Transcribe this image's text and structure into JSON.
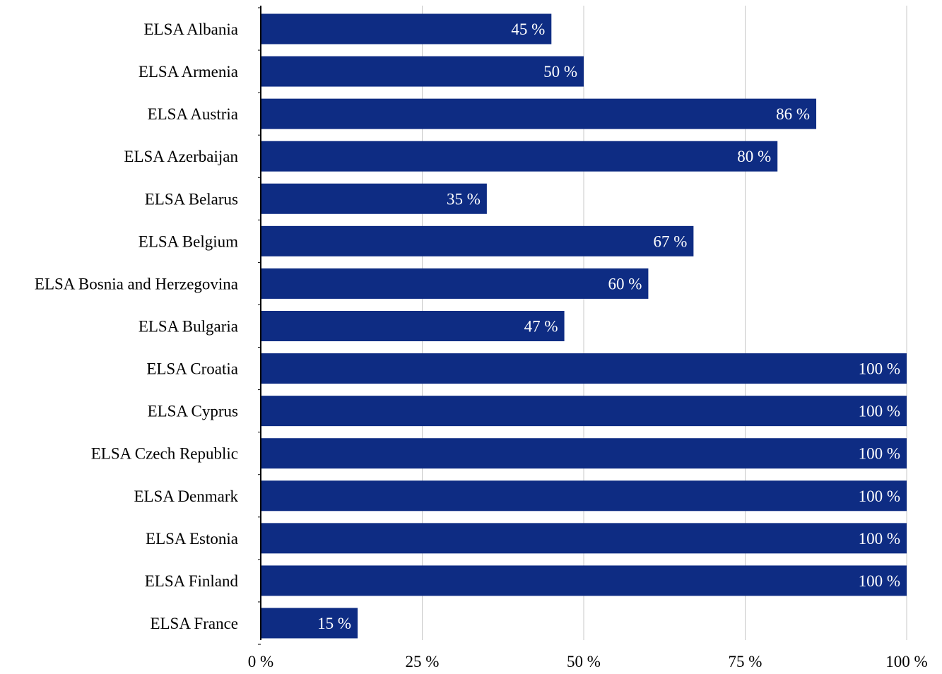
{
  "chart_data": {
    "type": "bar",
    "orientation": "horizontal",
    "title": "",
    "xlabel": "",
    "ylabel": "",
    "categories": [
      "ELSA Albania",
      "ELSA Armenia",
      "ELSA Austria",
      "ELSA Azerbaijan",
      "ELSA Belarus",
      "ELSA Belgium",
      "ELSA Bosnia and Herzegovina",
      "ELSA Bulgaria",
      "ELSA Croatia",
      "ELSA Cyprus",
      "ELSA Czech Republic",
      "ELSA Denmark",
      "ELSA Estonia",
      "ELSA Finland",
      "ELSA France"
    ],
    "values": [
      45,
      50,
      86,
      80,
      35,
      67,
      60,
      47,
      100,
      100,
      100,
      100,
      100,
      100,
      15
    ],
    "data_labels": [
      "45 %",
      "50 %",
      "86 %",
      "80 %",
      "35 %",
      "67 %",
      "60 %",
      "47 %",
      "100 %",
      "100 %",
      "100 %",
      "100 %",
      "100 %",
      "100 %",
      "15 %"
    ],
    "xlim": [
      0,
      100
    ],
    "x_ticks": [
      0,
      25,
      50,
      75,
      100
    ],
    "x_tick_labels": [
      "0 %",
      "25 %",
      "50 %",
      "75 %",
      "100 %"
    ],
    "grid": true,
    "legend": "none",
    "colors": {
      "bar": "#0e2c83",
      "bar_label": "#ffffff",
      "gridline": "#c8c8c8",
      "axis": "#000000",
      "text": "#000000"
    }
  }
}
